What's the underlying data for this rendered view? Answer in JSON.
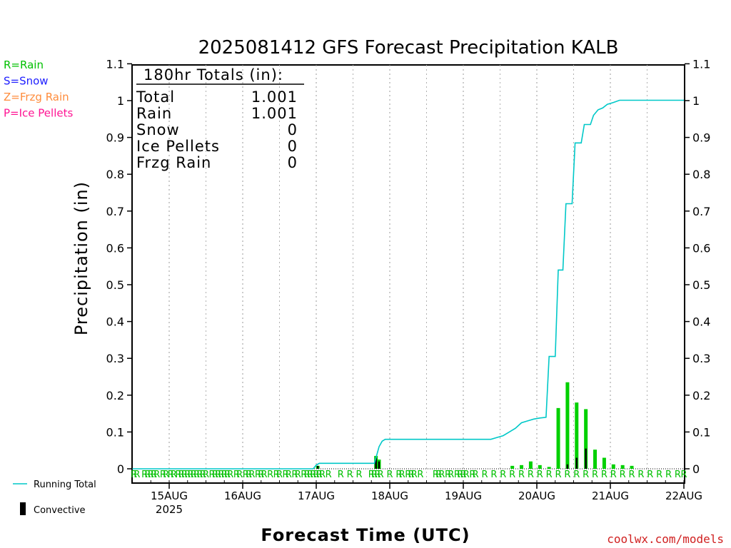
{
  "chart_data": {
    "type": "bar+line",
    "title": "2025081412 GFS Forecast Precipitation KALB",
    "ylabel": "Precipitation (in)",
    "xlabel": "Forecast Time (UTC)",
    "ylim": [
      0,
      1.1
    ],
    "yticks": [
      "0",
      "0.1",
      "0.2",
      "0.3",
      "0.4",
      "0.5",
      "0.6",
      "0.7",
      "0.8",
      "0.9",
      "1",
      "1.1"
    ],
    "xlim_hours": [
      -12,
      168
    ],
    "xticks": [
      {
        "hour": 0,
        "label": "15AUG",
        "sub": "2025"
      },
      {
        "hour": 24,
        "label": "16AUG",
        "sub": ""
      },
      {
        "hour": 48,
        "label": "17AUG",
        "sub": ""
      },
      {
        "hour": 72,
        "label": "18AUG",
        "sub": ""
      },
      {
        "hour": 96,
        "label": "19AUG",
        "sub": ""
      },
      {
        "hour": 120,
        "label": "20AUG",
        "sub": ""
      },
      {
        "hour": 144,
        "label": "21AUG",
        "sub": ""
      },
      {
        "hour": 168,
        "label": "22AUG",
        "sub": ""
      }
    ],
    "grid": "vertical-dotted",
    "totals": {
      "heading": "180hr Totals (in):",
      "rows": [
        {
          "label": "Total",
          "value": "1.001"
        },
        {
          "label": "Rain",
          "value": "1.001"
        },
        {
          "label": "Snow",
          "value": "0"
        },
        {
          "label": "Ice Pellets",
          "value": "0"
        },
        {
          "label": "Frzg Rain",
          "value": "0"
        }
      ]
    },
    "ptype_legend": [
      {
        "text": "R=Rain",
        "color": "#00c000"
      },
      {
        "text": "S=Snow",
        "color": "#2020ff"
      },
      {
        "text": "Z=Frzg Rain",
        "color": "#ff8c3c"
      },
      {
        "text": "P=Ice Pellets",
        "color": "#ff1493"
      }
    ],
    "series_legend": [
      {
        "text": "Running Total",
        "kind": "line",
        "color": "#00c8c8"
      },
      {
        "text": "Convective",
        "kind": "bar",
        "color": "#000000"
      }
    ],
    "running_total": [
      [
        -12,
        0
      ],
      [
        47,
        0
      ],
      [
        48,
        0.01
      ],
      [
        49,
        0.015
      ],
      [
        67,
        0.015
      ],
      [
        67.5,
        0.03
      ],
      [
        68.5,
        0.06
      ],
      [
        69.5,
        0.075
      ],
      [
        70.5,
        0.08
      ],
      [
        105,
        0.08
      ],
      [
        107,
        0.085
      ],
      [
        109,
        0.09
      ],
      [
        111,
        0.1
      ],
      [
        113,
        0.11
      ],
      [
        115,
        0.125
      ],
      [
        117,
        0.13
      ],
      [
        119,
        0.135
      ],
      [
        121,
        0.138
      ],
      [
        123,
        0.14
      ],
      [
        124,
        0.305
      ],
      [
        126,
        0.305
      ],
      [
        127,
        0.54
      ],
      [
        128.5,
        0.54
      ],
      [
        129.5,
        0.72
      ],
      [
        131.5,
        0.72
      ],
      [
        132.5,
        0.885
      ],
      [
        134.5,
        0.885
      ],
      [
        135.5,
        0.935
      ],
      [
        137.5,
        0.935
      ],
      [
        138.5,
        0.96
      ],
      [
        140,
        0.975
      ],
      [
        141.5,
        0.98
      ],
      [
        143,
        0.99
      ],
      [
        145,
        0.995
      ],
      [
        147,
        1.001
      ],
      [
        168,
        1.001
      ]
    ],
    "precip_bars": [
      {
        "hour": 48.5,
        "total": 0.008,
        "conv": 0.008
      },
      {
        "hour": 67.5,
        "total": 0.035,
        "conv": 0.03
      },
      {
        "hour": 68.5,
        "total": 0.025,
        "conv": 0.02
      },
      {
        "hour": 112,
        "total": 0.008,
        "conv": 0
      },
      {
        "hour": 115,
        "total": 0.01,
        "conv": 0
      },
      {
        "hour": 118,
        "total": 0.02,
        "conv": 0
      },
      {
        "hour": 121,
        "total": 0.01,
        "conv": 0
      },
      {
        "hour": 124,
        "total": 0.005,
        "conv": 0
      },
      {
        "hour": 127,
        "total": 0.165,
        "conv": 0
      },
      {
        "hour": 130,
        "total": 0.235,
        "conv": 0.012
      },
      {
        "hour": 133,
        "total": 0.18,
        "conv": 0.03
      },
      {
        "hour": 136,
        "total": 0.162,
        "conv": 0.055
      },
      {
        "hour": 139,
        "total": 0.052,
        "conv": 0
      },
      {
        "hour": 142,
        "total": 0.03,
        "conv": 0
      },
      {
        "hour": 145,
        "total": 0.012,
        "conv": 0
      },
      {
        "hour": 148,
        "total": 0.01,
        "conv": 0
      },
      {
        "hour": 151,
        "total": 0.008,
        "conv": 0
      }
    ],
    "ptype_marks": {
      "letter": "R",
      "hours": [
        -11.5,
        -10.5,
        -8,
        -7,
        -6,
        -5,
        -4,
        -2,
        -1,
        0.5,
        1.5,
        3,
        4,
        5,
        6,
        7,
        8,
        9,
        10,
        11,
        12,
        14,
        15,
        16,
        17,
        18,
        19,
        20,
        22,
        23,
        25,
        26,
        27,
        29,
        30,
        31,
        33,
        35,
        36,
        38,
        39,
        41,
        42,
        44,
        45,
        46,
        47,
        48,
        49,
        50,
        52,
        56,
        59,
        62,
        66,
        67,
        68,
        69,
        72,
        75,
        76,
        78,
        79,
        80,
        82,
        87,
        88,
        89,
        91,
        92,
        94,
        95,
        96,
        97,
        99,
        100,
        103,
        106,
        109,
        112,
        115,
        118,
        121,
        124,
        127,
        130,
        133,
        136,
        139,
        142,
        145,
        148,
        151,
        154,
        157,
        160,
        163,
        166,
        168
      ]
    }
  },
  "credit": "coolwx.com/models"
}
